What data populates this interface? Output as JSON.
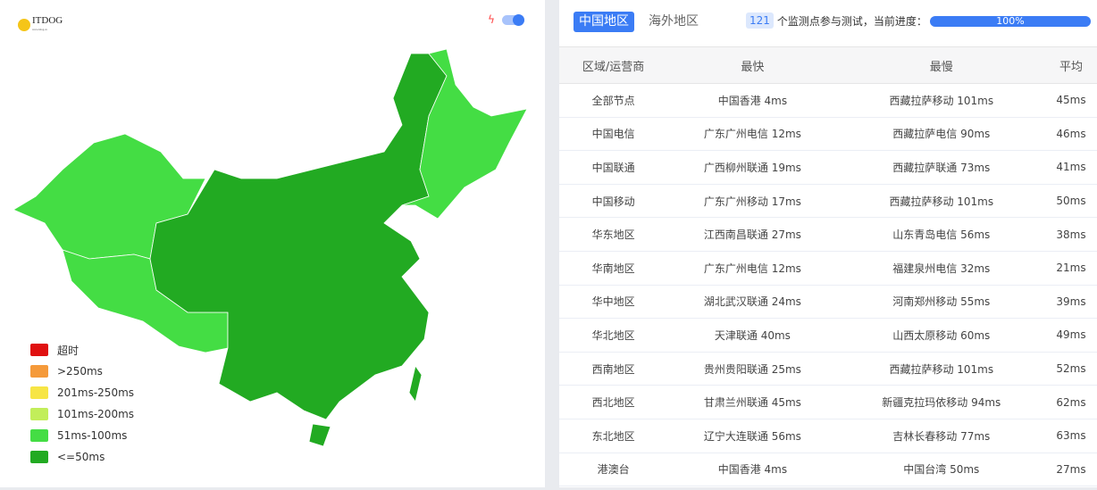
{
  "logo": {
    "text": "ITDOG",
    "sub": "www.itdog.cn"
  },
  "map": {
    "toggle_on": true,
    "colors": {
      "light": "#44dd44",
      "dark": "#22aa22"
    }
  },
  "legend": [
    {
      "label": "超时",
      "color": "#e01010"
    },
    {
      "label": ">250ms",
      "color": "#f59a3a"
    },
    {
      "label": "201ms-250ms",
      "color": "#f7e545"
    },
    {
      "label": "101ms-200ms",
      "color": "#c2ee5a"
    },
    {
      "label": "51ms-100ms",
      "color": "#44dd44"
    },
    {
      "label": "<=50ms",
      "color": "#22aa22"
    }
  ],
  "tabs": [
    {
      "label": "中国地区",
      "active": true
    },
    {
      "label": "海外地区",
      "active": false
    }
  ],
  "status": {
    "count": "121",
    "text": "个监测点参与测试，当前进度：",
    "progress": "100%",
    "progress_value": 100
  },
  "table": {
    "headers": [
      "区域/运营商",
      "最快",
      "最慢",
      "平均"
    ],
    "rows": [
      [
        "全部节点",
        "中国香港 4ms",
        "西藏拉萨移动 101ms",
        "45ms"
      ],
      [
        "中国电信",
        "广东广州电信 12ms",
        "西藏拉萨电信 90ms",
        "46ms"
      ],
      [
        "中国联通",
        "广西柳州联通 19ms",
        "西藏拉萨联通 73ms",
        "41ms"
      ],
      [
        "中国移动",
        "广东广州移动 17ms",
        "西藏拉萨移动 101ms",
        "50ms"
      ],
      [
        "华东地区",
        "江西南昌联通 27ms",
        "山东青岛电信 56ms",
        "38ms"
      ],
      [
        "华南地区",
        "广东广州电信 12ms",
        "福建泉州电信 32ms",
        "21ms"
      ],
      [
        "华中地区",
        "湖北武汉联通 24ms",
        "河南郑州移动 55ms",
        "39ms"
      ],
      [
        "华北地区",
        "天津联通 40ms",
        "山西太原移动 60ms",
        "49ms"
      ],
      [
        "西南地区",
        "贵州贵阳联通 25ms",
        "西藏拉萨移动 101ms",
        "52ms"
      ],
      [
        "西北地区",
        "甘肃兰州联通 45ms",
        "新疆克拉玛依移动 94ms",
        "62ms"
      ],
      [
        "东北地区",
        "辽宁大连联通 56ms",
        "吉林长春移动 77ms",
        "63ms"
      ],
      [
        "港澳台",
        "中国香港 4ms",
        "中国台湾 50ms",
        "27ms"
      ]
    ]
  }
}
